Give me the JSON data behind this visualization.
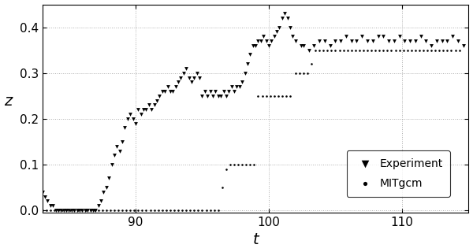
{
  "title": "",
  "xlabel": "t",
  "ylabel": "z",
  "xlim": [
    83,
    115
  ],
  "ylim": [
    -0.005,
    0.45
  ],
  "xticks": [
    90,
    100,
    110
  ],
  "yticks": [
    0.0,
    0.1,
    0.2,
    0.3,
    0.4
  ],
  "background_color": "#ffffff",
  "grid_color": "#999999",
  "legend_labels": [
    "Experiment",
    "MITgcm"
  ],
  "experiment_t": [
    83.0,
    83.2,
    83.4,
    83.6,
    83.8,
    84.0,
    84.2,
    84.4,
    84.6,
    84.8,
    85.0,
    85.2,
    85.4,
    85.6,
    85.8,
    86.0,
    86.2,
    86.4,
    86.6,
    86.8,
    87.0,
    87.2,
    87.4,
    87.6,
    87.8,
    88.0,
    88.2,
    88.4,
    88.6,
    88.8,
    89.0,
    89.2,
    89.4,
    89.6,
    89.8,
    90.0,
    90.2,
    90.4,
    90.6,
    90.8,
    91.0,
    91.2,
    91.4,
    91.6,
    91.8,
    92.0,
    92.2,
    92.4,
    92.6,
    92.8,
    93.0,
    93.2,
    93.4,
    93.6,
    93.8,
    94.0,
    94.2,
    94.4,
    94.6,
    94.8,
    95.0,
    95.2,
    95.4,
    95.6,
    95.8,
    96.0,
    96.2,
    96.4,
    96.6,
    96.8,
    97.0,
    97.2,
    97.4,
    97.6,
    97.8,
    98.0,
    98.2,
    98.4,
    98.6,
    98.8,
    99.0,
    99.2,
    99.4,
    99.6,
    99.8,
    100.0,
    100.2,
    100.4,
    100.6,
    100.8,
    101.0,
    101.2,
    101.4,
    101.6,
    101.8,
    102.0,
    102.4,
    102.6,
    103.0,
    103.4,
    103.8,
    104.2,
    104.6,
    105.0,
    105.4,
    105.8,
    106.2,
    106.6,
    107.0,
    107.4,
    107.8,
    108.2,
    108.6,
    109.0,
    109.4,
    109.8,
    110.2,
    110.6,
    111.0,
    111.4,
    111.8,
    112.2,
    112.6,
    113.0,
    113.4,
    113.8,
    114.2,
    114.6
  ],
  "experiment_z": [
    0.04,
    0.03,
    0.02,
    0.01,
    0.01,
    0.0,
    0.0,
    0.0,
    0.0,
    0.0,
    0.0,
    0.0,
    0.0,
    0.0,
    0.0,
    0.0,
    0.0,
    0.0,
    0.0,
    0.0,
    0.0,
    0.01,
    0.02,
    0.04,
    0.05,
    0.07,
    0.1,
    0.12,
    0.14,
    0.13,
    0.15,
    0.18,
    0.2,
    0.21,
    0.2,
    0.19,
    0.22,
    0.21,
    0.22,
    0.22,
    0.23,
    0.22,
    0.23,
    0.24,
    0.25,
    0.26,
    0.26,
    0.27,
    0.26,
    0.26,
    0.27,
    0.28,
    0.29,
    0.3,
    0.31,
    0.29,
    0.28,
    0.29,
    0.3,
    0.29,
    0.25,
    0.26,
    0.25,
    0.26,
    0.25,
    0.26,
    0.25,
    0.25,
    0.26,
    0.25,
    0.26,
    0.27,
    0.26,
    0.27,
    0.27,
    0.28,
    0.3,
    0.32,
    0.34,
    0.36,
    0.36,
    0.37,
    0.37,
    0.38,
    0.37,
    0.36,
    0.37,
    0.38,
    0.39,
    0.4,
    0.42,
    0.43,
    0.42,
    0.4,
    0.38,
    0.37,
    0.36,
    0.36,
    0.35,
    0.36,
    0.37,
    0.37,
    0.36,
    0.37,
    0.37,
    0.38,
    0.37,
    0.37,
    0.38,
    0.37,
    0.37,
    0.38,
    0.38,
    0.37,
    0.37,
    0.38,
    0.37,
    0.37,
    0.37,
    0.38,
    0.37,
    0.36,
    0.37,
    0.37,
    0.37,
    0.38,
    0.37,
    0.36
  ],
  "mitgcm_t": [
    83.0,
    83.3,
    83.6,
    83.9,
    84.2,
    84.5,
    84.8,
    85.1,
    85.4,
    85.7,
    86.0,
    86.3,
    86.6,
    86.9,
    87.2,
    87.5,
    87.8,
    88.1,
    88.4,
    88.7,
    89.0,
    89.3,
    89.6,
    89.9,
    90.2,
    90.5,
    90.8,
    91.1,
    91.4,
    91.7,
    92.0,
    92.3,
    92.6,
    92.9,
    93.2,
    93.5,
    93.8,
    94.1,
    94.4,
    94.7,
    95.0,
    95.3,
    95.6,
    95.9,
    96.2,
    96.5,
    96.8,
    97.1,
    97.4,
    97.7,
    98.0,
    98.3,
    98.6,
    98.9,
    99.2,
    99.5,
    99.8,
    100.1,
    100.4,
    100.7,
    101.0,
    101.3,
    101.6,
    102.0,
    102.3,
    102.6,
    102.9,
    103.2,
    103.5,
    103.8,
    104.1,
    104.4,
    104.7,
    105.0,
    105.3,
    105.6,
    105.9,
    106.2,
    106.5,
    106.8,
    107.1,
    107.4,
    107.7,
    108.0,
    108.3,
    108.6,
    108.9,
    109.2,
    109.5,
    109.8,
    110.1,
    110.4,
    110.7,
    111.0,
    111.3,
    111.6,
    111.9,
    112.2,
    112.5,
    112.8,
    113.1,
    113.4,
    113.7,
    114.0,
    114.3
  ],
  "mitgcm_z": [
    0.0,
    0.0,
    0.0,
    0.0,
    0.0,
    0.0,
    0.0,
    0.0,
    0.0,
    0.0,
    0.0,
    0.0,
    0.0,
    0.0,
    0.0,
    0.0,
    0.0,
    0.0,
    0.0,
    0.0,
    0.0,
    0.0,
    0.0,
    0.0,
    0.0,
    0.0,
    0.0,
    0.0,
    0.0,
    0.0,
    0.0,
    0.0,
    0.0,
    0.0,
    0.0,
    0.0,
    0.0,
    0.0,
    0.0,
    0.0,
    0.0,
    0.0,
    0.0,
    0.0,
    0.0,
    0.05,
    0.09,
    0.1,
    0.1,
    0.1,
    0.1,
    0.1,
    0.1,
    0.1,
    0.25,
    0.25,
    0.25,
    0.25,
    0.25,
    0.25,
    0.25,
    0.25,
    0.25,
    0.3,
    0.3,
    0.3,
    0.3,
    0.32,
    0.35,
    0.35,
    0.35,
    0.35,
    0.35,
    0.35,
    0.35,
    0.35,
    0.35,
    0.35,
    0.35,
    0.35,
    0.35,
    0.35,
    0.35,
    0.35,
    0.35,
    0.35,
    0.35,
    0.35,
    0.35,
    0.35,
    0.35,
    0.35,
    0.35,
    0.35,
    0.35,
    0.35,
    0.35,
    0.35,
    0.35,
    0.35,
    0.35,
    0.35,
    0.35,
    0.35,
    0.35
  ]
}
